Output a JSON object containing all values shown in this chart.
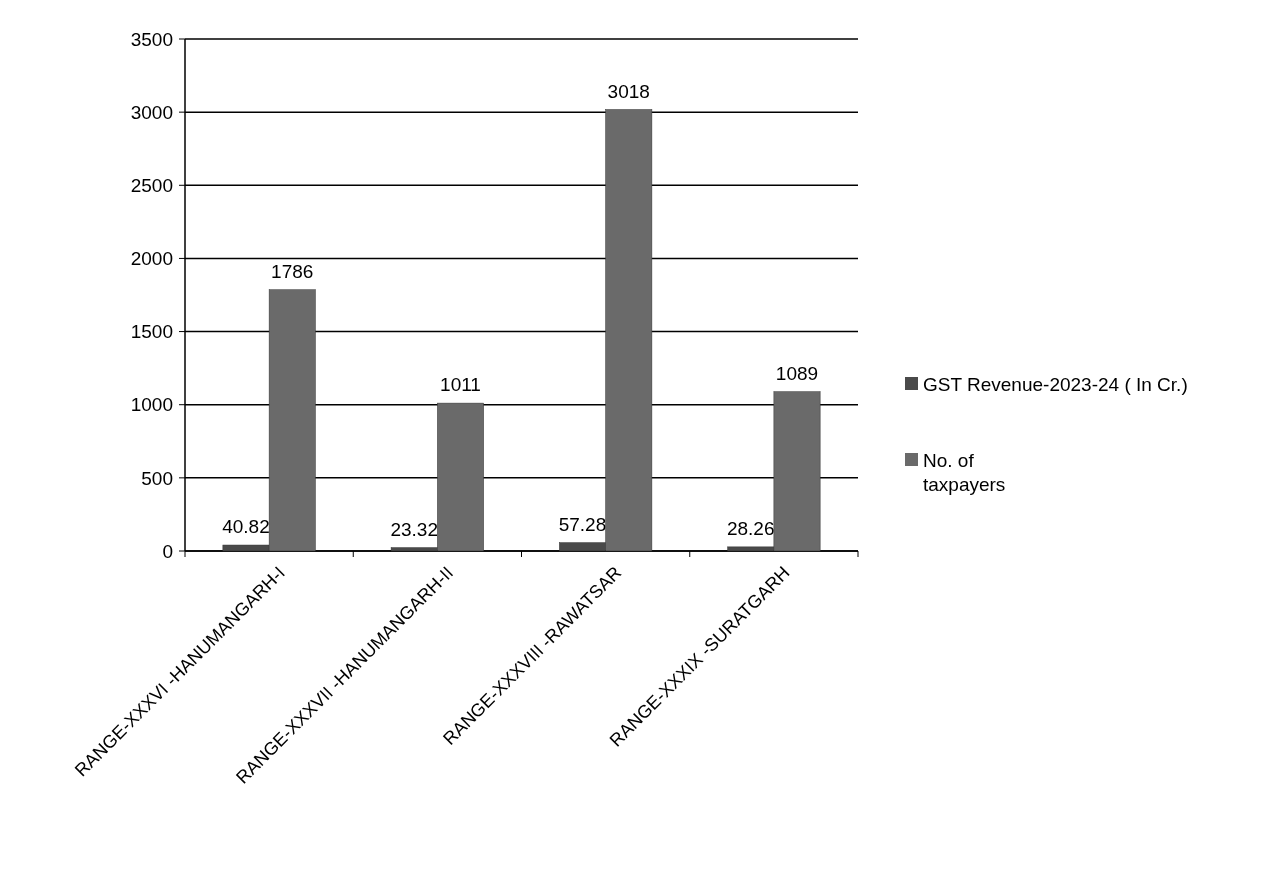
{
  "chart_data": {
    "type": "bar",
    "categories": [
      "RANGE-XXXVI -HANUMANGARH-I",
      "RANGE-XXXVII -HANUMANGARH-II",
      "RANGE-XXXVIII -RAWATSAR",
      "RANGE-XXXIX -SURATGARH"
    ],
    "series": [
      {
        "name": "GST Revenue-2023-24 ( In Cr.)",
        "color": "#4a4a4a",
        "values": [
          40.82,
          23.32,
          57.28,
          28.26
        ]
      },
      {
        "name": "No. of taxpayers",
        "color": "#6a6a6a",
        "values": [
          1786,
          1011,
          3018,
          1089
        ]
      }
    ],
    "ylim": [
      0,
      3500
    ],
    "yticks": [
      0,
      500,
      1000,
      1500,
      2000,
      2500,
      3000,
      3500
    ],
    "grid": "y",
    "legend": "right",
    "data_labels": true
  }
}
